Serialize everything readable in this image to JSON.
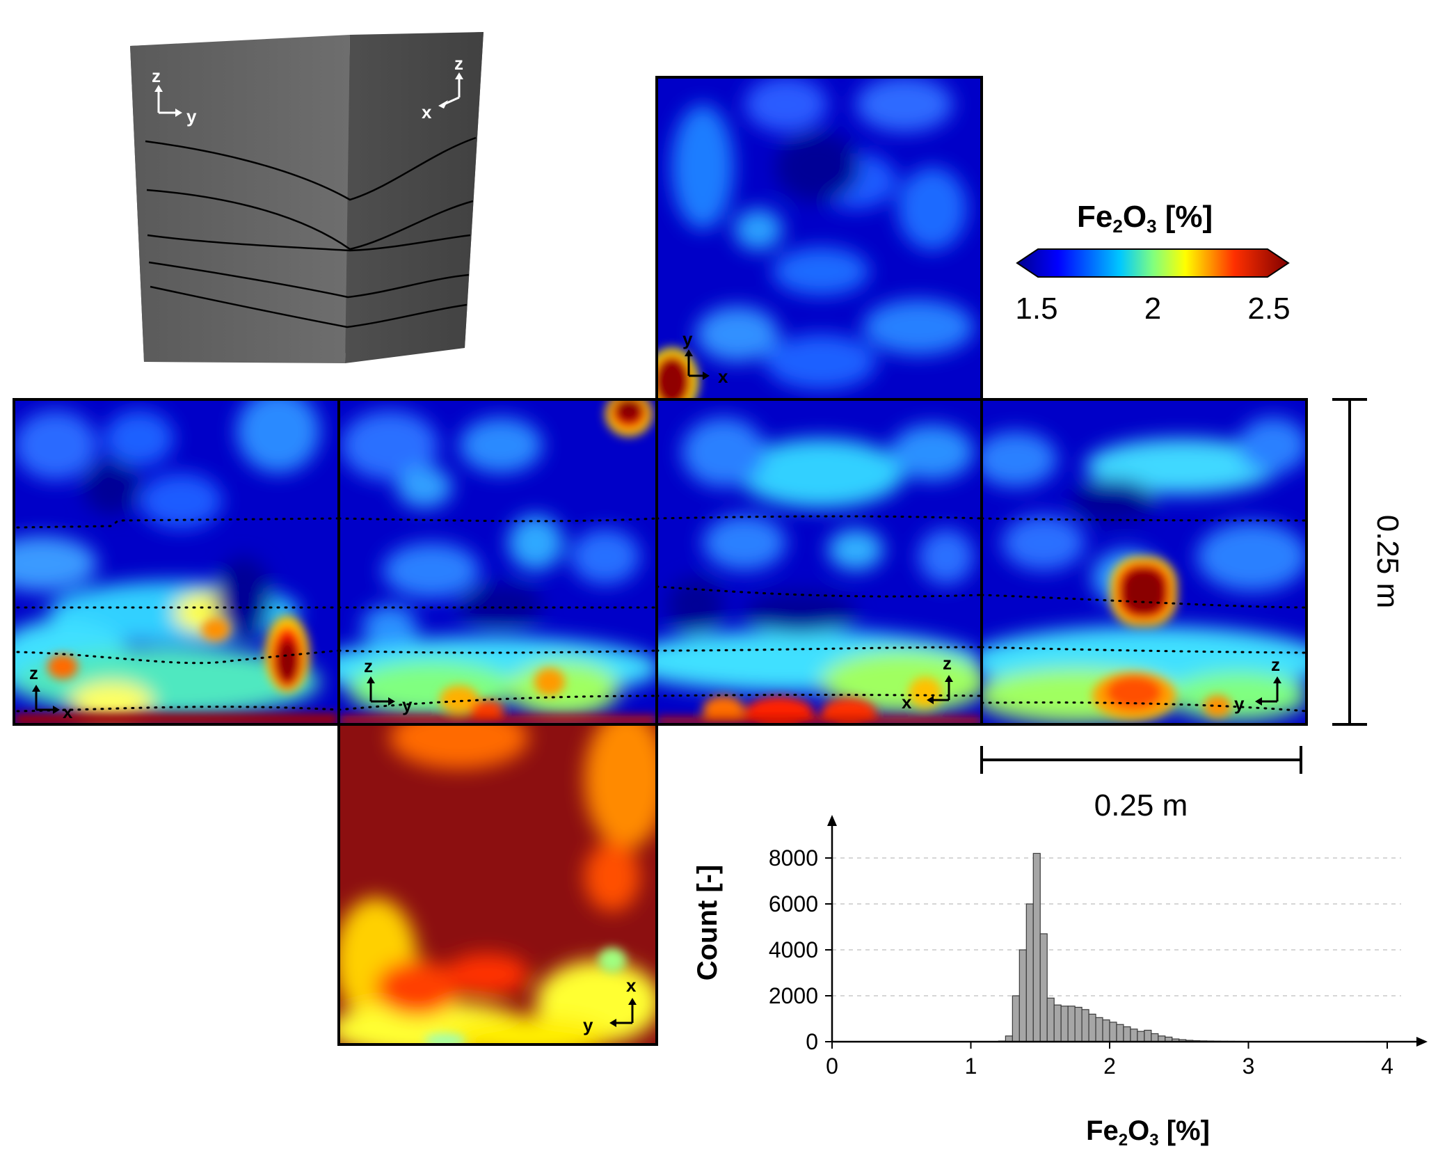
{
  "colorbar": {
    "title_main": "Fe",
    "title_sub1": "2",
    "title_mid": "O",
    "title_sub2": "3",
    "title_unit": " [%]",
    "ticks": [
      "1.5",
      "2",
      "2.5"
    ],
    "range": [
      1.5,
      2.5
    ],
    "colormap": [
      "#00008f",
      "#0000ff",
      "#00ffff",
      "#ffff00",
      "#ff0000",
      "#800000"
    ]
  },
  "scale_bars": {
    "vertical_label": "0.25 m",
    "horizontal_label": "0.25 m"
  },
  "face_axes": {
    "top": [
      "y",
      "x"
    ],
    "left": [
      "z",
      "x"
    ],
    "front": [
      "z",
      "y"
    ],
    "right": [
      "z",
      "x"
    ],
    "back": [
      "z",
      "y"
    ],
    "bottom": [
      "x",
      "y"
    ],
    "photo_left": [
      "z",
      "y"
    ],
    "photo_right": [
      "z",
      "x"
    ]
  },
  "chart_data": {
    "type": "bar",
    "xlabel_main": "Fe",
    "xlabel_sub1": "2",
    "xlabel_mid": "O",
    "xlabel_sub2": "3",
    "xlabel_unit": " [%]",
    "ylabel": "Count [-]",
    "xlim": [
      0,
      4
    ],
    "ylim": [
      0,
      8000
    ],
    "xticks": [
      "0",
      "1",
      "2",
      "3",
      "4"
    ],
    "yticks": [
      "0",
      "2000",
      "4000",
      "6000",
      "8000"
    ],
    "grid": true,
    "bin_width": 0.05,
    "bin_starts": [
      1.2,
      1.25,
      1.3,
      1.35,
      1.4,
      1.45,
      1.5,
      1.55,
      1.6,
      1.65,
      1.7,
      1.75,
      1.8,
      1.85,
      1.9,
      1.95,
      2.0,
      2.05,
      2.1,
      2.15,
      2.2,
      2.25,
      2.3,
      2.35,
      2.4,
      2.45,
      2.5,
      2.55,
      2.6,
      2.65,
      2.7,
      2.75,
      2.8,
      2.85,
      2.9,
      2.95,
      3.0,
      3.05,
      3.1,
      3.15,
      3.2,
      3.25,
      3.3,
      3.35,
      3.4,
      3.45,
      3.5,
      3.55,
      3.6,
      3.65,
      3.7,
      3.75,
      3.8,
      3.85,
      3.9,
      3.95
    ],
    "values": [
      30,
      250,
      2000,
      4000,
      6000,
      8200,
      4700,
      1900,
      1600,
      1550,
      1550,
      1500,
      1400,
      1200,
      1050,
      950,
      850,
      750,
      650,
      550,
      450,
      500,
      350,
      250,
      200,
      120,
      90,
      60,
      45,
      35,
      30,
      25,
      20,
      18,
      15,
      12,
      10,
      10,
      8,
      8,
      6,
      6,
      5,
      5,
      4,
      4,
      3,
      3,
      3,
      2,
      2,
      2,
      2,
      1,
      1,
      1
    ]
  }
}
